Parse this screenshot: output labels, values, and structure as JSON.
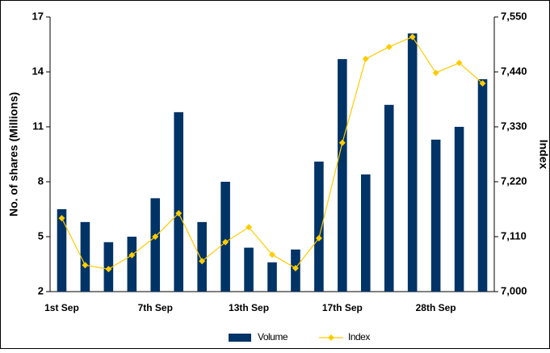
{
  "chart_data": {
    "type": "bar_line",
    "categories": [
      "1st Sep",
      null,
      null,
      null,
      "7th Sep",
      null,
      null,
      null,
      "13th Sep",
      null,
      null,
      null,
      "17th Sep",
      null,
      null,
      null,
      "28th Sep",
      null,
      null
    ],
    "series": [
      {
        "name": "Volume",
        "color": "#003366",
        "type": "bar",
        "axis": "y",
        "values": [
          6.5,
          5.8,
          4.7,
          5.0,
          7.1,
          11.8,
          5.8,
          8.0,
          4.4,
          3.6,
          4.3,
          9.1,
          14.7,
          8.4,
          12.2,
          16.1,
          10.3,
          11.0,
          13.6
        ]
      },
      {
        "name": "Index",
        "color": "#ffcc00",
        "type": "line",
        "axis": "y2",
        "values": [
          7147,
          7053,
          7045,
          7073,
          7110,
          7157,
          7061,
          7099,
          7129,
          7074,
          7047,
          7107,
          7298,
          7466,
          7490,
          7510,
          7438,
          7458,
          7417
        ]
      }
    ],
    "ylabel": "No. of shares (Millions)",
    "y2label": "Index",
    "ylim": [
      2,
      17
    ],
    "yticks": [
      2,
      5,
      8,
      11,
      14,
      17
    ],
    "y2lim": [
      7000,
      7550
    ],
    "y2ticks": [
      {
        "value": 7000,
        "label": "7,000"
      },
      {
        "value": 7110,
        "label": "7,110"
      },
      {
        "value": 7220,
        "label": "7,220"
      },
      {
        "value": 7330,
        "label": "7,330"
      },
      {
        "value": 7440,
        "label": "7,440"
      },
      {
        "value": 7550,
        "label": "7,550"
      }
    ],
    "legend": "bottom"
  }
}
